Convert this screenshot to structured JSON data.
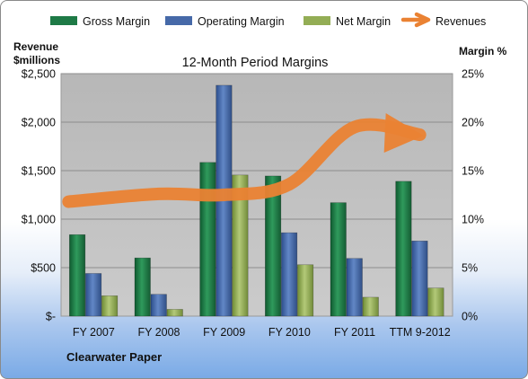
{
  "chart_data": {
    "type": "bar",
    "title": "12-Month Period Margins",
    "categories": [
      "FY 2007",
      "FY 2008",
      "FY 2009",
      "FY 2010",
      "FY 2011",
      "TTM 9-2012"
    ],
    "series": [
      {
        "name": "Gross Margin",
        "kind": "bar",
        "axis": "left",
        "values": [
          840,
          600,
          1585,
          1445,
          1170,
          1390
        ]
      },
      {
        "name": "Operating Margin",
        "kind": "bar",
        "axis": "left",
        "values": [
          440,
          225,
          2380,
          860,
          595,
          775
        ]
      },
      {
        "name": "Net Margin",
        "kind": "bar",
        "axis": "left",
        "values": [
          210,
          70,
          1455,
          530,
          195,
          290
        ]
      },
      {
        "name": "Revenues",
        "kind": "arrow",
        "axis": "right",
        "values": [
          11.8,
          12.6,
          12.5,
          13.6,
          19.5,
          18.7
        ]
      }
    ],
    "y_left": {
      "label": "Revenue $millions",
      "label_lines": [
        "Revenue",
        "$millions"
      ],
      "ylim": [
        0,
        2500
      ],
      "ticks": [
        "$-",
        "$500",
        "$1,000",
        "$1,500",
        "$2,000",
        "$2,500"
      ]
    },
    "y_right": {
      "label": "Margin %",
      "ylim": [
        0,
        25
      ],
      "ticks": [
        "0%",
        "5%",
        "10%",
        "15%",
        "20%",
        "25%"
      ]
    },
    "legend_placement": "top",
    "grid": true,
    "footer": "Clearwater Paper",
    "colors": {
      "Gross Margin": "#1e7a46",
      "Operating Margin": "#4669a8",
      "Net Margin": "#93ad55",
      "Revenues": "#ea8233",
      "plot_bg": "#bfbfbf",
      "grid": "#8e8e8e"
    }
  }
}
